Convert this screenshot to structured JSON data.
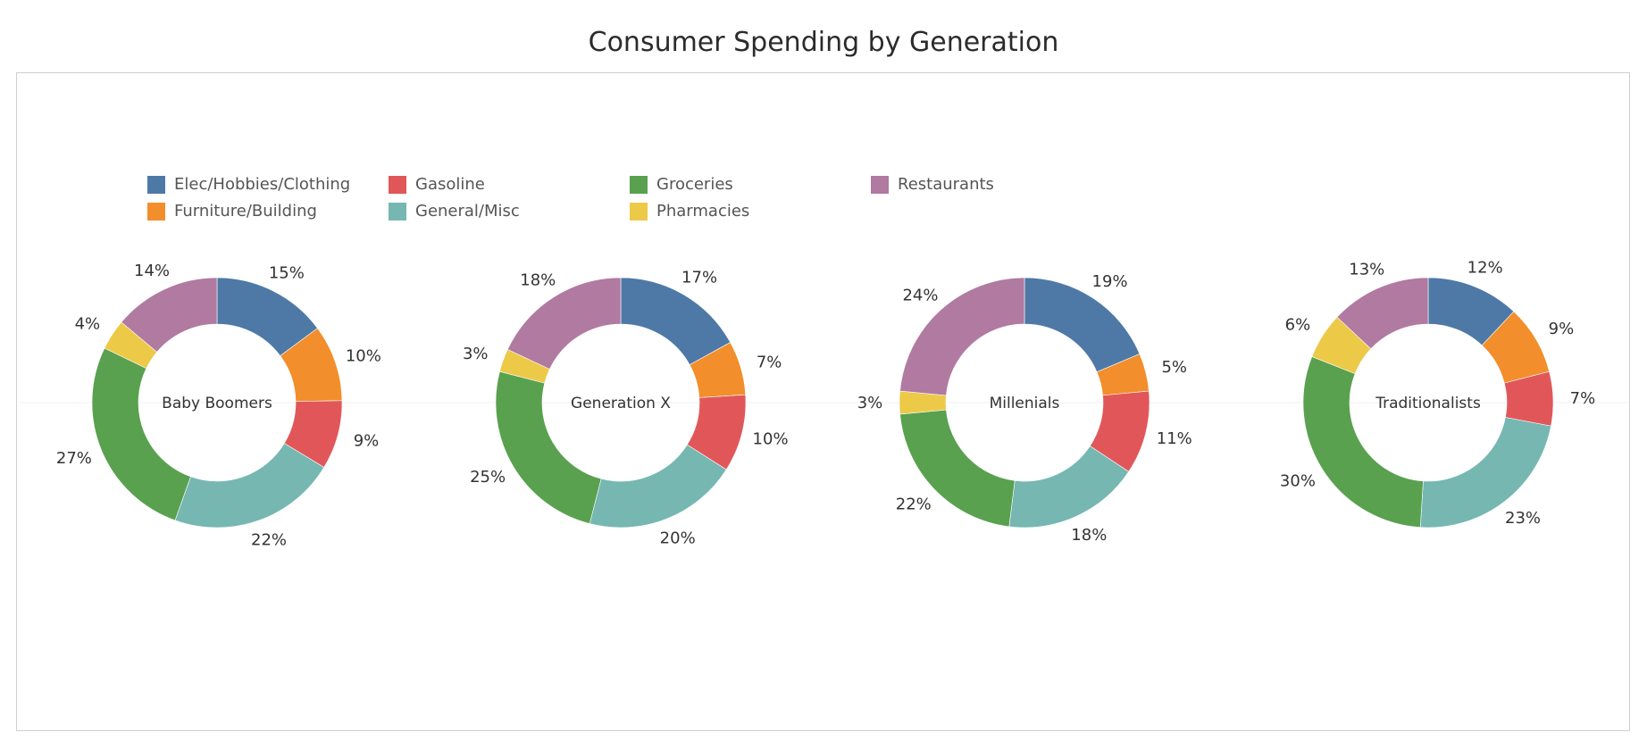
{
  "title": "Consumer Spending by Generation",
  "categories": [
    "Elec/Hobbies/Clothing",
    "Furniture/Building",
    "Gasoline",
    "General/Misc",
    "Groceries",
    "Pharmacies",
    "Restaurants"
  ],
  "colors": [
    "#4e79a7",
    "#f28e2b",
    "#e15759",
    "#76b7b2",
    "#59a14f",
    "#edc948",
    "#b07aa1"
  ],
  "legend_order": [
    0,
    2,
    4,
    6,
    1,
    3,
    5
  ],
  "chart_data": [
    {
      "type": "donut",
      "label": "Baby Boomers",
      "categories": [
        "Elec/Hobbies/Clothing",
        "Furniture/Building",
        "Gasoline",
        "General/Misc",
        "Groceries",
        "Pharmacies",
        "Restaurants"
      ],
      "values": [
        15,
        10,
        9,
        22,
        27,
        4,
        14
      ],
      "labels": [
        "15%",
        "10%",
        "9%",
        "22%",
        "27%",
        "4%",
        "14%"
      ]
    },
    {
      "type": "donut",
      "label": "Generation X",
      "categories": [
        "Elec/Hobbies/Clothing",
        "Furniture/Building",
        "Gasoline",
        "General/Misc",
        "Groceries",
        "Pharmacies",
        "Restaurants"
      ],
      "values": [
        17,
        7,
        10,
        20,
        25,
        3,
        18
      ],
      "labels": [
        "17%",
        "7%",
        "10%",
        "20%",
        "25%",
        "3%",
        "18%"
      ]
    },
    {
      "type": "donut",
      "label": "Millenials",
      "categories": [
        "Elec/Hobbies/Clothing",
        "Furniture/Building",
        "Gasoline",
        "General/Misc",
        "Groceries",
        "Pharmacies",
        "Restaurants"
      ],
      "values": [
        19,
        5,
        11,
        18,
        22,
        3,
        24
      ],
      "labels": [
        "19%",
        "5%",
        "11%",
        "18%",
        "22%",
        "3%",
        "24%"
      ]
    },
    {
      "type": "donut",
      "label": "Traditionalists",
      "categories": [
        "Elec/Hobbies/Clothing",
        "Furniture/Building",
        "Gasoline",
        "General/Misc",
        "Groceries",
        "Pharmacies",
        "Restaurants"
      ],
      "values": [
        12,
        9,
        7,
        23,
        30,
        6,
        13
      ],
      "labels": [
        "12%",
        "9%",
        "7%",
        "23%",
        "30%",
        "6%",
        "13%"
      ]
    }
  ]
}
